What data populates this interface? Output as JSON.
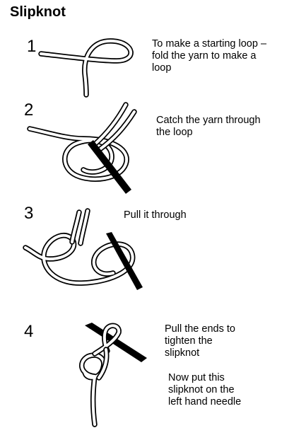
{
  "title": "Slipknot",
  "steps": [
    {
      "number": "1",
      "lines": [
        "To make a starting loop –",
        "fold the yarn to make a",
        "loop"
      ]
    },
    {
      "number": "2",
      "lines": [
        "Catch the yarn through",
        "the loop"
      ]
    },
    {
      "number": "3",
      "lines": [
        "Pull it through"
      ]
    },
    {
      "number": "4",
      "lines": [
        "Pull the ends to",
        "tighten the",
        "slipknot"
      ],
      "extra": [
        "Now put this",
        "slipknot on the",
        "left hand needle"
      ]
    }
  ]
}
